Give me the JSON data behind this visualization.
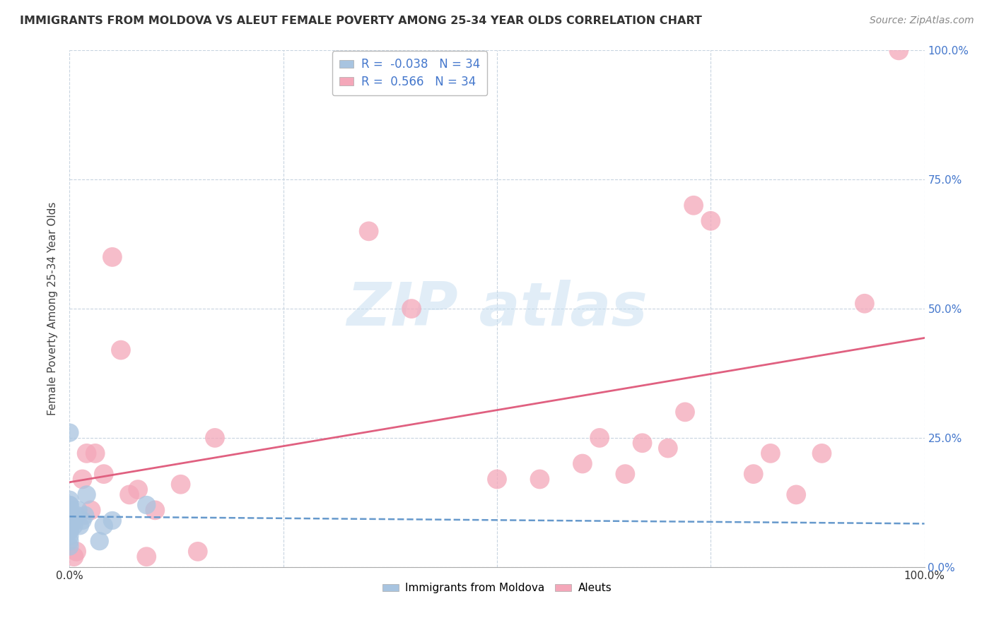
{
  "title": "IMMIGRANTS FROM MOLDOVA VS ALEUT FEMALE POVERTY AMONG 25-34 YEAR OLDS CORRELATION CHART",
  "source": "Source: ZipAtlas.com",
  "ylabel": "Female Poverty Among 25-34 Year Olds",
  "xlim": [
    0,
    1.0
  ],
  "ylim": [
    0,
    1.0
  ],
  "x_ticks": [
    0.0,
    0.25,
    0.5,
    0.75,
    1.0
  ],
  "y_ticks": [
    0.0,
    0.25,
    0.5,
    0.75,
    1.0
  ],
  "x_tick_labels_bottom_only": [
    "0.0%",
    "",
    "",
    "",
    "100.0%"
  ],
  "y_tick_labels_right": [
    "0.0%",
    "25.0%",
    "50.0%",
    "75.0%",
    "100.0%"
  ],
  "legend_labels": [
    "Immigrants from Moldova",
    "Aleuts"
  ],
  "R_moldova": -0.038,
  "N_moldova": 34,
  "R_aleuts": 0.566,
  "N_aleuts": 34,
  "moldova_color": "#a8c4e0",
  "aleuts_color": "#f4a7b9",
  "moldova_line_color": "#6699cc",
  "aleuts_line_color": "#e06080",
  "background_color": "#ffffff",
  "grid_color": "#c8d4e0",
  "moldova_x": [
    0.0,
    0.0,
    0.0,
    0.0,
    0.0,
    0.0,
    0.0,
    0.0,
    0.0,
    0.0,
    0.0,
    0.0,
    0.0,
    0.0,
    0.0,
    0.0,
    0.0,
    0.0,
    0.0,
    0.0,
    0.0,
    0.0,
    0.005,
    0.005,
    0.008,
    0.01,
    0.012,
    0.015,
    0.018,
    0.02,
    0.035,
    0.04,
    0.05,
    0.09
  ],
  "moldova_y": [
    0.04,
    0.05,
    0.06,
    0.07,
    0.07,
    0.08,
    0.08,
    0.09,
    0.09,
    0.09,
    0.1,
    0.1,
    0.1,
    0.1,
    0.11,
    0.11,
    0.11,
    0.11,
    0.12,
    0.12,
    0.13,
    0.26,
    0.08,
    0.09,
    0.1,
    0.11,
    0.08,
    0.09,
    0.1,
    0.14,
    0.05,
    0.08,
    0.09,
    0.12
  ],
  "aleuts_x": [
    0.005,
    0.008,
    0.015,
    0.02,
    0.025,
    0.03,
    0.04,
    0.05,
    0.06,
    0.07,
    0.08,
    0.09,
    0.1,
    0.13,
    0.15,
    0.17,
    0.35,
    0.4,
    0.5,
    0.55,
    0.6,
    0.62,
    0.65,
    0.67,
    0.7,
    0.72,
    0.73,
    0.75,
    0.8,
    0.82,
    0.85,
    0.88,
    0.93,
    0.97
  ],
  "aleuts_y": [
    0.02,
    0.03,
    0.17,
    0.22,
    0.11,
    0.22,
    0.18,
    0.6,
    0.42,
    0.14,
    0.15,
    0.02,
    0.11,
    0.16,
    0.03,
    0.25,
    0.65,
    0.5,
    0.17,
    0.17,
    0.2,
    0.25,
    0.18,
    0.24,
    0.23,
    0.3,
    0.7,
    0.67,
    0.18,
    0.22,
    0.14,
    0.22,
    0.51,
    1.0
  ],
  "marker_size": 200
}
